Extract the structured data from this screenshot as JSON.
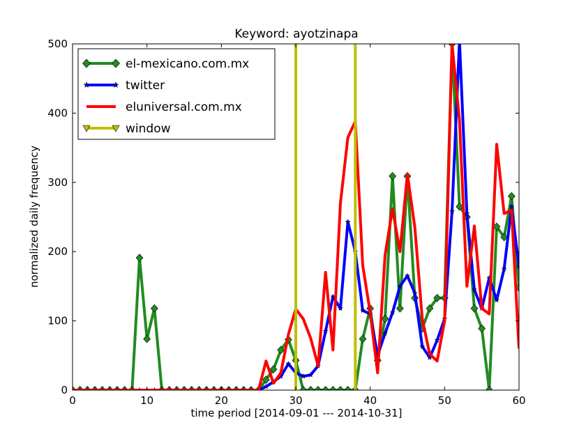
{
  "chart_data": {
    "type": "line",
    "title": "Keyword: ayotzinapa",
    "xlabel": "time period [2014-09-01 --- 2014-10-31]",
    "ylabel": "normalized daily frequency",
    "xlim": [
      0,
      60
    ],
    "ylim": [
      0,
      500
    ],
    "xticks": [
      "0",
      "10",
      "20",
      "30",
      "40",
      "50",
      "60"
    ],
    "yticks": [
      "0",
      "100",
      "200",
      "300",
      "400",
      "500"
    ],
    "grid": false,
    "legend_position": "top-left",
    "x": [
      0,
      1,
      2,
      3,
      4,
      5,
      6,
      7,
      8,
      9,
      10,
      11,
      12,
      13,
      14,
      15,
      16,
      17,
      18,
      19,
      20,
      21,
      22,
      23,
      24,
      25,
      26,
      27,
      28,
      29,
      30,
      31,
      32,
      33,
      34,
      35,
      36,
      37,
      38,
      39,
      40,
      41,
      42,
      43,
      44,
      45,
      46,
      47,
      48,
      49,
      50,
      51,
      52,
      53,
      54,
      55,
      56,
      57,
      58,
      59,
      60
    ],
    "series": [
      {
        "name": "el-mexicano.com.mx",
        "color": "#228b22",
        "marker": "diamond",
        "values": [
          0,
          0,
          0,
          0,
          0,
          0,
          0,
          0,
          0,
          191,
          74,
          118,
          0,
          0,
          0,
          0,
          0,
          0,
          0,
          0,
          0,
          0,
          0,
          0,
          0,
          0,
          15,
          30,
          58,
          73,
          43,
          0,
          0,
          0,
          0,
          0,
          0,
          0,
          0,
          74,
          118,
          43,
          103,
          309,
          118,
          309,
          133,
          89,
          118,
          133,
          133,
          500,
          265,
          250,
          118,
          89,
          0,
          236,
          221,
          280,
          148
        ]
      },
      {
        "name": "twitter",
        "color": "#0000ff",
        "marker": "star",
        "values": [
          0,
          0,
          0,
          0,
          0,
          0,
          0,
          0,
          0,
          0,
          0,
          0,
          0,
          0,
          0,
          0,
          0,
          0,
          0,
          0,
          0,
          0,
          0,
          0,
          0,
          0,
          5,
          12,
          20,
          38,
          25,
          20,
          22,
          35,
          85,
          135,
          118,
          243,
          200,
          115,
          110,
          50,
          82,
          112,
          150,
          165,
          140,
          63,
          47,
          72,
          103,
          258,
          505,
          255,
          145,
          118,
          162,
          130,
          175,
          265,
          178
        ]
      },
      {
        "name": "eluniversal.com.mx",
        "color": "#ff0000",
        "marker": "none",
        "values": [
          0,
          0,
          0,
          0,
          0,
          0,
          0,
          0,
          0,
          0,
          0,
          0,
          0,
          0,
          0,
          0,
          0,
          0,
          0,
          0,
          0,
          0,
          0,
          0,
          0,
          0,
          42,
          10,
          25,
          80,
          117,
          103,
          75,
          35,
          170,
          58,
          270,
          365,
          388,
          180,
          112,
          25,
          195,
          262,
          200,
          312,
          235,
          103,
          52,
          42,
          100,
          500,
          390,
          150,
          237,
          118,
          110,
          355,
          255,
          260,
          60
        ]
      }
    ],
    "window": {
      "name": "window",
      "color": "#bfbf00",
      "marker": "triangle-down",
      "x": [
        30,
        38
      ]
    }
  }
}
